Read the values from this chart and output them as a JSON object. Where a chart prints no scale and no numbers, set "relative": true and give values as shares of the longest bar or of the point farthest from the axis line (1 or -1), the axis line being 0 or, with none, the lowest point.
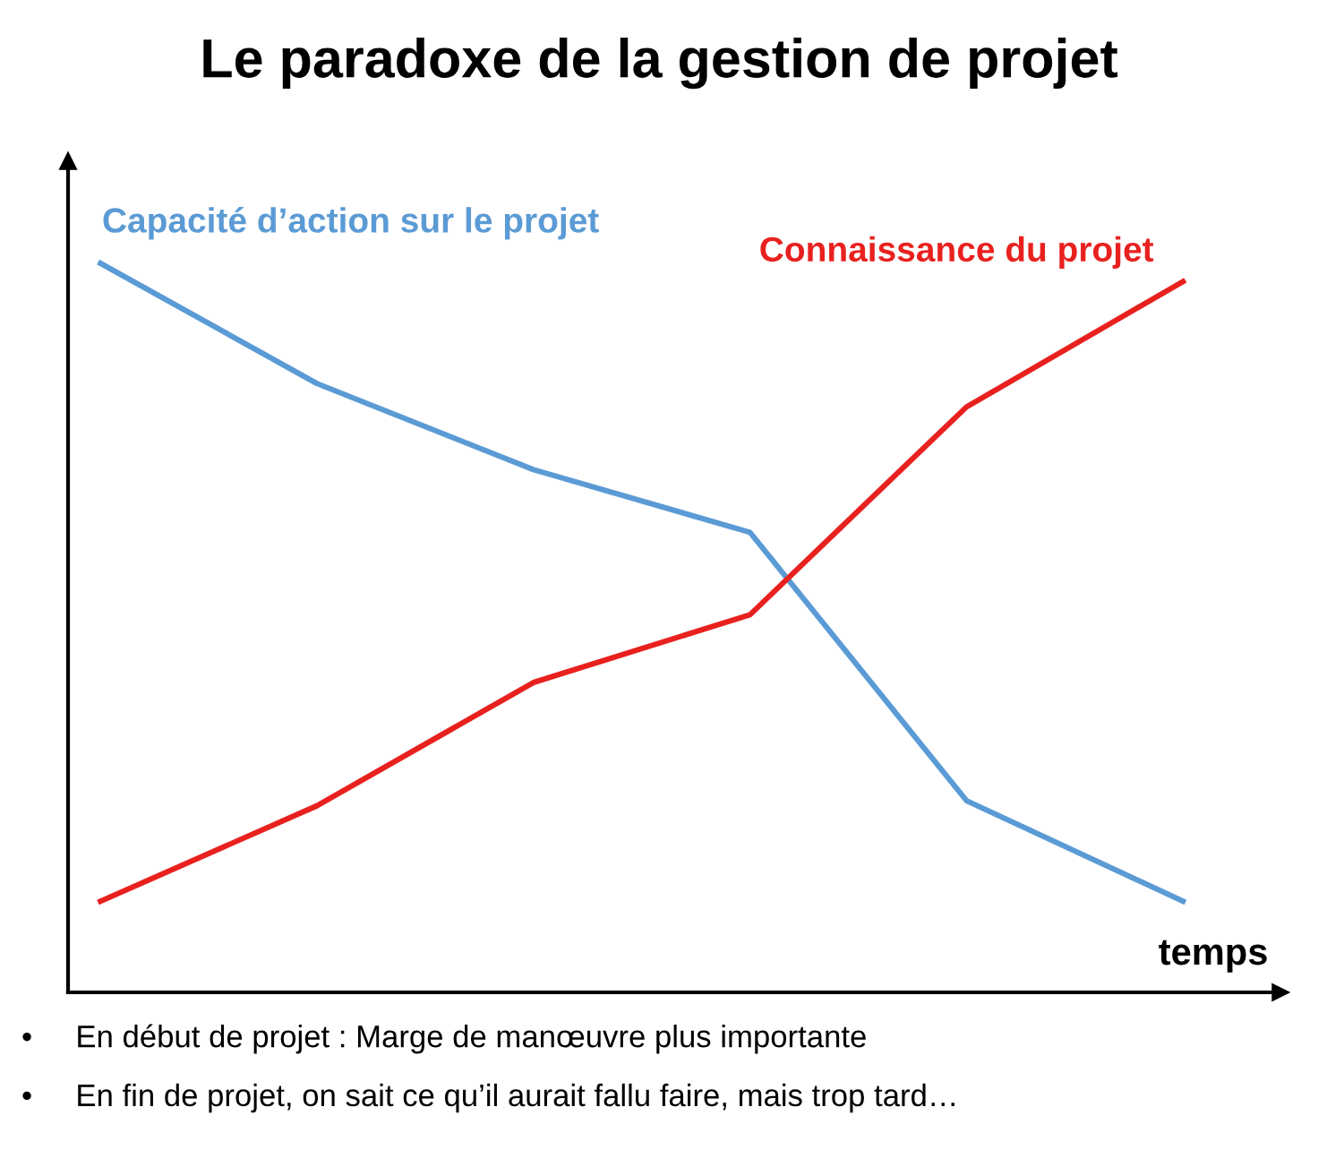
{
  "chart_data": {
    "type": "line",
    "title": "Le paradoxe de la gestion de projet",
    "xlabel": "temps",
    "relative": true,
    "legend": false,
    "marker": "none",
    "line_style": "solid",
    "categories": [
      null,
      null,
      null,
      null,
      null,
      null
    ],
    "series": [
      {
        "name": "Capacité d’action sur le projet",
        "color": "#5b9bd5",
        "values": [
          1,
          0.835,
          0.717,
          0.631,
          0.263,
          0.125
        ]
      },
      {
        "name": "Connaissance du projet",
        "color": "#e8211f",
        "values": [
          0.125,
          0.256,
          0.425,
          0.518,
          0.803,
          0.975
        ]
      }
    ],
    "annotations": [
      "•     En début de projet : Marge de manœuvre plus importante",
      "•     En fin de projet, on sait ce qu’il aurait fallu faire, mais trop tard…"
    ]
  }
}
